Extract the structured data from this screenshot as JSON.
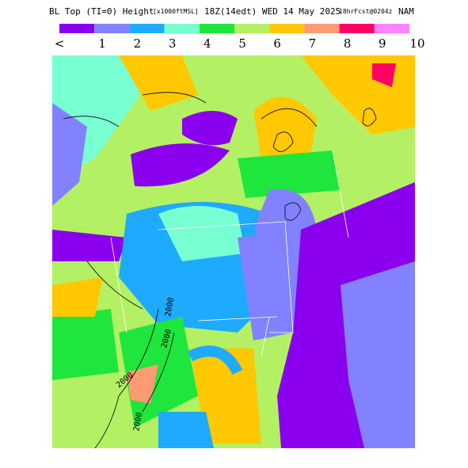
{
  "header": {
    "title": "BL Top (TI=0) Height",
    "units": "[x1000ftMSL]",
    "time": "18Z(14edt) WED 14 May 2025",
    "forecast": "18hrFcst@0204z",
    "model": "NAM"
  },
  "legend": {
    "colors": [
      "#8a00ee",
      "#8282ff",
      "#1eaaff",
      "#78ffd2",
      "#1ee63c",
      "#b4f064",
      "#ffc800",
      "#ff9b73",
      "#ff0064",
      "#ff82ff"
    ],
    "labels": [
      "<",
      "1",
      "2",
      "3",
      "4",
      "5",
      "6",
      "7",
      "8",
      "9",
      "10"
    ]
  },
  "contour_labels": [
    "2000",
    "2000",
    "2000",
    "2000"
  ]
}
